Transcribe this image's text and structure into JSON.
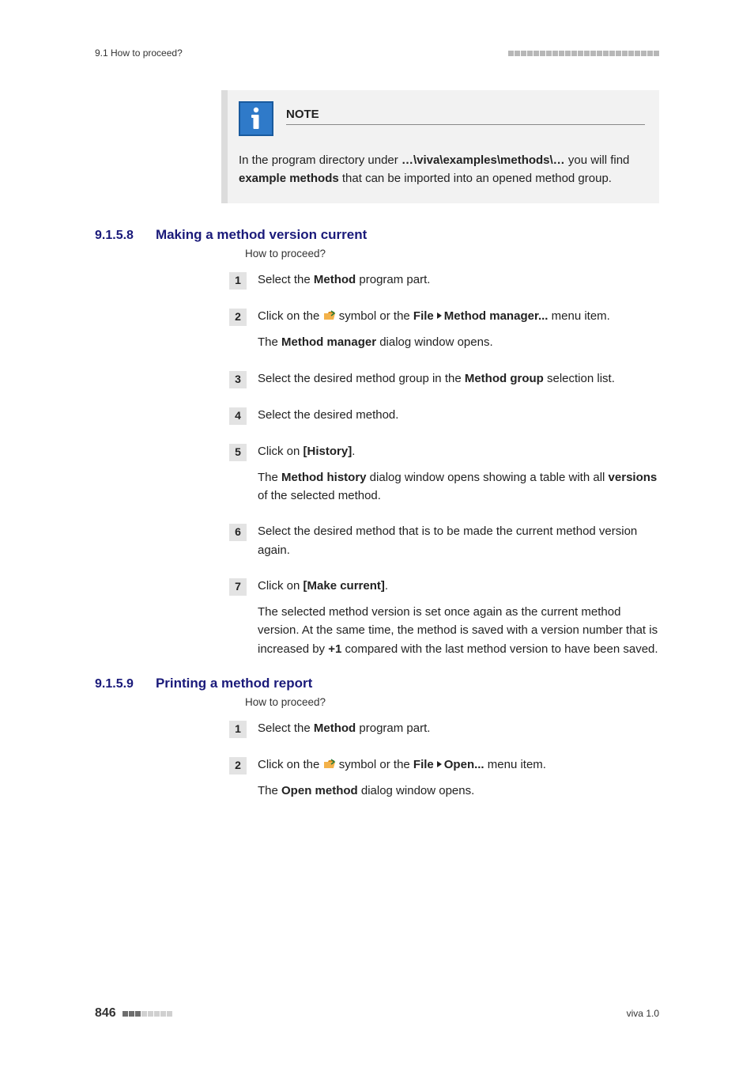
{
  "colors": {
    "heading": "#1a1a7a",
    "note_border": "#dcdcdc",
    "note_bg": "#f2f2f2",
    "note_icon_bg": "#2f7ac9",
    "note_icon_border": "#195a9e",
    "step_num_bg": "#e3e3e3",
    "square_dark": "#6e6e6e",
    "square_light": "#d0d0d0"
  },
  "header": {
    "left": "9.1 How to proceed?",
    "square_count": 24
  },
  "note": {
    "label": "NOTE",
    "body_pre": "In the program directory under ",
    "path": "…\\viva\\examples\\methods\\…",
    "body_mid1": " you will find ",
    "bold1": "example methods",
    "body_post": " that can be imported into an opened method group."
  },
  "sections": [
    {
      "number": "9.1.5.8",
      "title": "Making a method version current",
      "caption": "How to proceed?",
      "steps": [
        {
          "n": "1",
          "paras": [
            {
              "runs": [
                {
                  "t": "Select the "
                },
                {
                  "t": "Method",
                  "b": true
                },
                {
                  "t": " program part."
                }
              ]
            }
          ]
        },
        {
          "n": "2",
          "paras": [
            {
              "runs": [
                {
                  "t": "Click on the "
                },
                {
                  "icon": "new-doc"
                },
                {
                  "t": " symbol or the "
                },
                {
                  "t": "File",
                  "b": true
                },
                {
                  "arrow": true
                },
                {
                  "t": "Method manager...",
                  "b": true
                },
                {
                  "t": " menu item."
                }
              ]
            },
            {
              "runs": [
                {
                  "t": "The "
                },
                {
                  "t": "Method manager",
                  "b": true
                },
                {
                  "t": " dialog window opens."
                }
              ]
            }
          ]
        },
        {
          "n": "3",
          "paras": [
            {
              "runs": [
                {
                  "t": "Select the desired method group in the "
                },
                {
                  "t": "Method group",
                  "b": true
                },
                {
                  "t": " selection list."
                }
              ]
            }
          ]
        },
        {
          "n": "4",
          "paras": [
            {
              "runs": [
                {
                  "t": "Select the desired method."
                }
              ]
            }
          ]
        },
        {
          "n": "5",
          "paras": [
            {
              "runs": [
                {
                  "t": "Click on "
                },
                {
                  "t": "[History]",
                  "b": true
                },
                {
                  "t": "."
                }
              ]
            },
            {
              "runs": [
                {
                  "t": "The "
                },
                {
                  "t": "Method history",
                  "b": true
                },
                {
                  "t": " dialog window opens showing a table with all "
                },
                {
                  "t": "versions",
                  "b": true
                },
                {
                  "t": " of the selected method."
                }
              ]
            }
          ]
        },
        {
          "n": "6",
          "paras": [
            {
              "runs": [
                {
                  "t": "Select the desired method that is to be made the current method version again."
                }
              ]
            }
          ]
        },
        {
          "n": "7",
          "paras": [
            {
              "runs": [
                {
                  "t": "Click on "
                },
                {
                  "t": "[Make current]",
                  "b": true
                },
                {
                  "t": "."
                }
              ]
            },
            {
              "runs": [
                {
                  "t": "The selected method version is set once again as the current method version. At the same time, the method is saved with a version number that is increased by "
                },
                {
                  "t": "+1",
                  "b": true
                },
                {
                  "t": " compared with the last method version to have been saved."
                }
              ]
            }
          ]
        }
      ]
    },
    {
      "number": "9.1.5.9",
      "title": "Printing a method report",
      "caption": "How to proceed?",
      "steps": [
        {
          "n": "1",
          "paras": [
            {
              "runs": [
                {
                  "t": "Select the "
                },
                {
                  "t": "Method",
                  "b": true
                },
                {
                  "t": " program part."
                }
              ]
            }
          ]
        },
        {
          "n": "2",
          "paras": [
            {
              "runs": [
                {
                  "t": "Click on the "
                },
                {
                  "icon": "open-folder"
                },
                {
                  "t": " symbol or the "
                },
                {
                  "t": "File",
                  "b": true
                },
                {
                  "arrow": true
                },
                {
                  "t": "Open...",
                  "b": true
                },
                {
                  "t": " menu item."
                }
              ]
            },
            {
              "runs": [
                {
                  "t": "The "
                },
                {
                  "t": "Open method",
                  "b": true
                },
                {
                  "t": " dialog window opens."
                }
              ]
            }
          ]
        }
      ]
    }
  ],
  "footer": {
    "page": "846",
    "right": "viva 1.0",
    "dark_squares": 3,
    "total_squares": 8
  }
}
